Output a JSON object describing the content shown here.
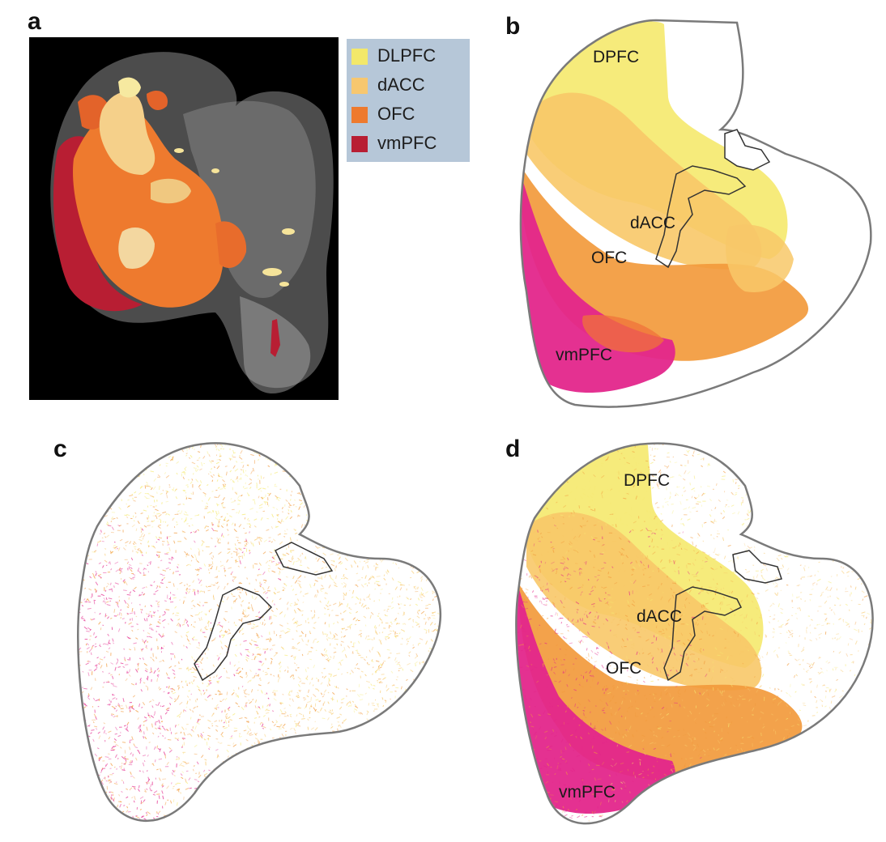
{
  "panels": {
    "a": {
      "letter": "a"
    },
    "b": {
      "letter": "b"
    },
    "c": {
      "letter": "c"
    },
    "d": {
      "letter": "d"
    }
  },
  "legend": {
    "items": [
      {
        "label": "DLPFC",
        "color": "#f3e86a"
      },
      {
        "label": "dACC",
        "color": "#f7c76f"
      },
      {
        "label": "OFC",
        "color": "#ee7a2e"
      },
      {
        "label": "vmPFC",
        "color": "#b81e33"
      }
    ]
  },
  "region_labels": {
    "dpfc": "DPFC",
    "dacc": "dACC",
    "ofc": "OFC",
    "vmpfc": "vmPFC"
  },
  "colors": {
    "dpfc": "#f6ea74",
    "dacc": "#f8c868",
    "ofc": "#f29a3c",
    "vmpfc": "#e3268b",
    "outline": "#7a7a7a",
    "panel_a_background": "#000000"
  }
}
